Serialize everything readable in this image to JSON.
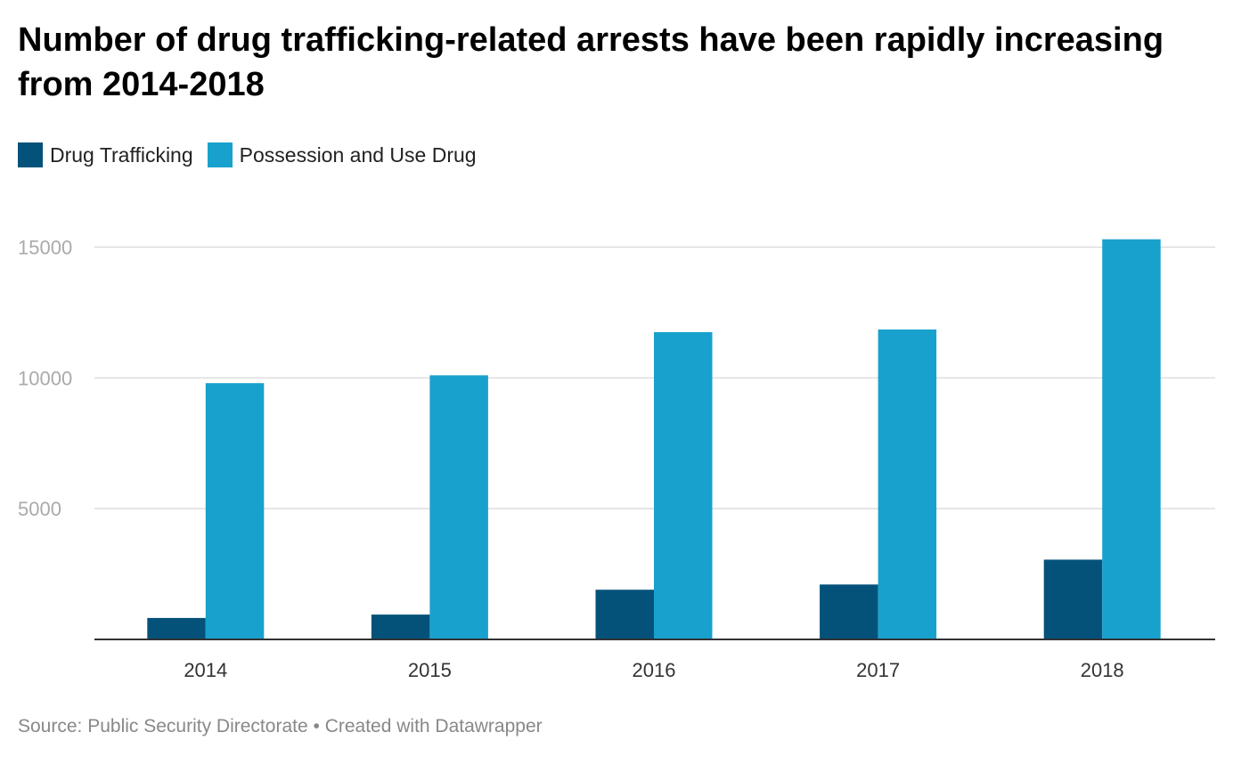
{
  "title": "Number of drug trafficking-related arrests have been rapidly increasing from 2014-2018",
  "legend": [
    {
      "label": "Drug Trafficking",
      "color": "#04527a"
    },
    {
      "label": "Possession and Use Drug",
      "color": "#18a1cd"
    }
  ],
  "chart_data": {
    "type": "bar",
    "title": "Number of drug trafficking-related arrests have been rapidly increasing from 2014-2018",
    "xlabel": "",
    "ylabel": "",
    "categories": [
      "2014",
      "2015",
      "2016",
      "2017",
      "2018"
    ],
    "series": [
      {
        "name": "Drug Trafficking",
        "color": "#04527a",
        "values": [
          820,
          950,
          1900,
          2100,
          3050
        ]
      },
      {
        "name": "Possession and Use Drug",
        "color": "#18a1cd",
        "values": [
          9800,
          10100,
          11750,
          11850,
          15300
        ]
      }
    ],
    "yticks": [
      5000,
      10000,
      15000
    ],
    "ylim": [
      0,
      15000
    ],
    "grid": true,
    "legend_position": "top-left"
  },
  "footer": {
    "source": "Source: Public Security Directorate",
    "separator": "•",
    "credit": "Created with Datawrapper"
  }
}
